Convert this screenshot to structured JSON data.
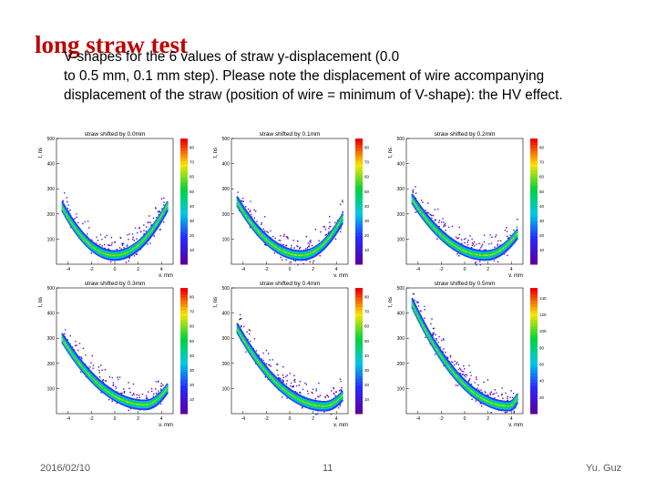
{
  "slide": {
    "title": "long straw test",
    "description_lines": [
      "V-shapes for the 6 values of straw y-displacement (0.0",
      "to 0.5 mm, 0.1 mm step). Please note the displacement of wire accompanying",
      "displacement of the straw (position of wire = minimum of V-shape): the HV effect."
    ],
    "footer": {
      "date": "2016/02/10",
      "page": "11",
      "author": "Yu. Guz"
    }
  },
  "chart_data": [
    {
      "type": "heatmap",
      "title": "straw shifted by 0.0mm",
      "xlabel": "y, mm",
      "ylabel": "t, ns",
      "xlim": [
        -5,
        5
      ],
      "ylim": [
        0,
        500
      ],
      "x_ticks": [
        "-4",
        "-2",
        "0",
        "2",
        "4"
      ],
      "y_ticks": [
        "100",
        "200",
        "300",
        "400",
        "500"
      ],
      "colorbar_ticks": [
        "10",
        "20",
        "30",
        "40",
        "50",
        "60",
        "70",
        "80"
      ],
      "curve": {
        "shape": "V",
        "min_y_mm": 0.0,
        "min_t_ns": 35,
        "left_end_t_ns": 230,
        "right_end_t_ns": 230
      }
    },
    {
      "type": "heatmap",
      "title": "straw shifted by 0.1mm",
      "xlabel": "y, mm",
      "ylabel": "t, ns",
      "xlim": [
        -5,
        5
      ],
      "ylim": [
        0,
        500
      ],
      "x_ticks": [
        "-4",
        "-2",
        "0",
        "2",
        "4"
      ],
      "y_ticks": [
        "100",
        "200",
        "300",
        "400",
        "500"
      ],
      "colorbar_ticks": [
        "10",
        "20",
        "30",
        "40",
        "50",
        "60",
        "70",
        "80"
      ],
      "curve": {
        "shape": "V",
        "min_y_mm": 1.0,
        "min_t_ns": 35,
        "left_end_t_ns": 250,
        "right_end_t_ns": 180
      }
    },
    {
      "type": "heatmap",
      "title": "straw shifted by 0.2mm",
      "xlabel": "y, mm",
      "ylabel": "t, ns",
      "xlim": [
        -5,
        5
      ],
      "ylim": [
        0,
        500
      ],
      "x_ticks": [
        "-4",
        "-2",
        "0",
        "2",
        "4"
      ],
      "y_ticks": [
        "100",
        "200",
        "300",
        "400",
        "500"
      ],
      "colorbar_ticks": [
        "10",
        "20",
        "30",
        "40",
        "50",
        "60",
        "70",
        "80"
      ],
      "curve": {
        "shape": "V",
        "min_y_mm": 1.8,
        "min_t_ns": 35,
        "left_end_t_ns": 260,
        "right_end_t_ns": 120
      }
    },
    {
      "type": "heatmap",
      "title": "straw shifted by 0.3mm",
      "xlabel": "y, mm",
      "ylabel": "t, ns",
      "xlim": [
        -5,
        5
      ],
      "ylim": [
        0,
        500
      ],
      "x_ticks": [
        "-4",
        "-2",
        "0",
        "2",
        "4"
      ],
      "y_ticks": [
        "100",
        "200",
        "300",
        "400",
        "500"
      ],
      "colorbar_ticks": [
        "10",
        "20",
        "30",
        "40",
        "50",
        "60",
        "70",
        "80"
      ],
      "curve": {
        "shape": "V",
        "min_y_mm": 2.6,
        "min_t_ns": 35,
        "left_end_t_ns": 300,
        "right_end_t_ns": 100
      }
    },
    {
      "type": "heatmap",
      "title": "straw shifted by 0.4mm",
      "xlabel": "y, mm",
      "ylabel": "t, ns",
      "xlim": [
        -5,
        5
      ],
      "ylim": [
        0,
        500
      ],
      "x_ticks": [
        "-4",
        "-2",
        "0",
        "2",
        "4"
      ],
      "y_ticks": [
        "100",
        "200",
        "300",
        "400",
        "500"
      ],
      "colorbar_ticks": [
        "10",
        "20",
        "30",
        "40",
        "50",
        "60",
        "70",
        "80"
      ],
      "curve": {
        "shape": "V",
        "min_y_mm": 3.0,
        "min_t_ns": 30,
        "left_end_t_ns": 340,
        "right_end_t_ns": 70
      }
    },
    {
      "type": "heatmap",
      "title": "straw shifted by 0.5mm",
      "xlabel": "y, mm",
      "ylabel": "t, ns",
      "xlim": [
        -5,
        5
      ],
      "ylim": [
        0,
        500
      ],
      "x_ticks": [
        "-4",
        "-2",
        "0",
        "2",
        "4"
      ],
      "y_ticks": [
        "100",
        "200",
        "300",
        "400",
        "500"
      ],
      "colorbar_ticks": [
        "20",
        "40",
        "60",
        "80",
        "100",
        "120",
        "140"
      ],
      "curve": {
        "shape": "V",
        "min_y_mm": 3.8,
        "min_t_ns": 30,
        "left_end_t_ns": 440,
        "right_end_t_ns": 60
      }
    }
  ]
}
